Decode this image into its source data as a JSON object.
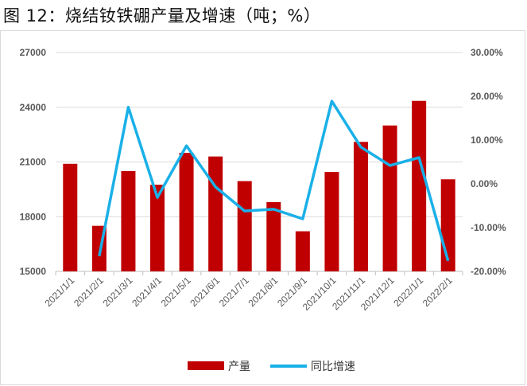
{
  "title": "图 12：烧结钕铁硼产量及增速（吨；%）",
  "chart_data": {
    "type": "bar+line",
    "categories": [
      "2021/1/1",
      "2021/2/1",
      "2021/3/1",
      "2021/4/1",
      "2021/5/1",
      "2021/6/1",
      "2021/7/1",
      "2021/8/1",
      "2021/9/1",
      "2021/10/1",
      "2021/11/1",
      "2021/12/1",
      "2022/1/1",
      "2022/2/1"
    ],
    "series": [
      {
        "name": "产量",
        "type": "bar",
        "axis": "left",
        "color": "#C00000",
        "values": [
          20900,
          17500,
          20500,
          19750,
          21500,
          21300,
          19950,
          18800,
          17200,
          20450,
          22100,
          23000,
          24350,
          20050
        ]
      },
      {
        "name": "同比增速",
        "type": "line",
        "axis": "right",
        "color": "#1AB0E8",
        "values": [
          null,
          -16.5,
          17.5,
          -3.1,
          8.7,
          -0.7,
          -6.2,
          -5.8,
          -8.0,
          18.9,
          8.4,
          4.2,
          6.0,
          -17.6
        ]
      }
    ],
    "left_axis": {
      "ylim": [
        15000,
        27000
      ],
      "ticks": [
        "15000",
        "18000",
        "21000",
        "24000",
        "27000"
      ]
    },
    "right_axis": {
      "ylim": [
        -20,
        30
      ],
      "ticks": [
        "-20.00%",
        "-10.00%",
        "0.00%",
        "10.00%",
        "20.00%",
        "30.00%"
      ]
    },
    "grid": true,
    "legend": "bottom"
  }
}
